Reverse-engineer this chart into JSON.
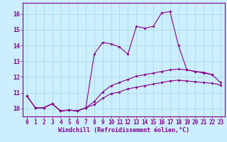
{
  "title": "",
  "xlabel": "Windchill (Refroidissement éolien,°C)",
  "background_color": "#cceeff",
  "grid_color": "#aadddd",
  "line_color": "#880088",
  "spine_color": "#880088",
  "xlim": [
    -0.5,
    23.5
  ],
  "ylim": [
    9.5,
    16.7
  ],
  "yticks": [
    10,
    11,
    12,
    13,
    14,
    15,
    16
  ],
  "xticks": [
    0,
    1,
    2,
    3,
    4,
    5,
    6,
    7,
    8,
    9,
    10,
    11,
    12,
    13,
    14,
    15,
    16,
    17,
    18,
    19,
    20,
    21,
    22,
    23
  ],
  "curve1_x": [
    0,
    1,
    2,
    3,
    4,
    5,
    6,
    7,
    8,
    9,
    10,
    11,
    12,
    13,
    14,
    15,
    16,
    17,
    18,
    19,
    20,
    21,
    22
  ],
  "curve1_y": [
    10.8,
    10.05,
    10.05,
    10.3,
    9.85,
    9.9,
    9.85,
    10.05,
    13.45,
    14.2,
    14.1,
    13.9,
    13.45,
    15.2,
    15.1,
    15.2,
    16.05,
    16.15,
    14.0,
    12.45,
    12.35,
    12.3,
    12.15
  ],
  "curve2_x": [
    0,
    1,
    2,
    3,
    4,
    5,
    6,
    7,
    8,
    9,
    10,
    11,
    12,
    13,
    14,
    15,
    16,
    17,
    18,
    19,
    20,
    21,
    22,
    23
  ],
  "curve2_y": [
    10.8,
    10.05,
    10.05,
    10.3,
    9.85,
    9.9,
    9.85,
    10.05,
    10.45,
    11.05,
    11.45,
    11.65,
    11.85,
    12.05,
    12.15,
    12.25,
    12.35,
    12.45,
    12.5,
    12.45,
    12.35,
    12.25,
    12.15,
    11.65
  ],
  "curve3_x": [
    0,
    1,
    2,
    3,
    4,
    5,
    6,
    7,
    8,
    9,
    10,
    11,
    12,
    13,
    14,
    15,
    16,
    17,
    18,
    19,
    20,
    21,
    22,
    23
  ],
  "curve3_y": [
    10.8,
    10.05,
    10.05,
    10.3,
    9.85,
    9.9,
    9.85,
    10.05,
    10.25,
    10.65,
    10.95,
    11.05,
    11.25,
    11.35,
    11.45,
    11.55,
    11.65,
    11.75,
    11.8,
    11.75,
    11.7,
    11.65,
    11.6,
    11.5
  ],
  "tick_fontsize": 5.5,
  "label_fontsize": 6.0,
  "lw": 0.8,
  "ms": 2.0
}
